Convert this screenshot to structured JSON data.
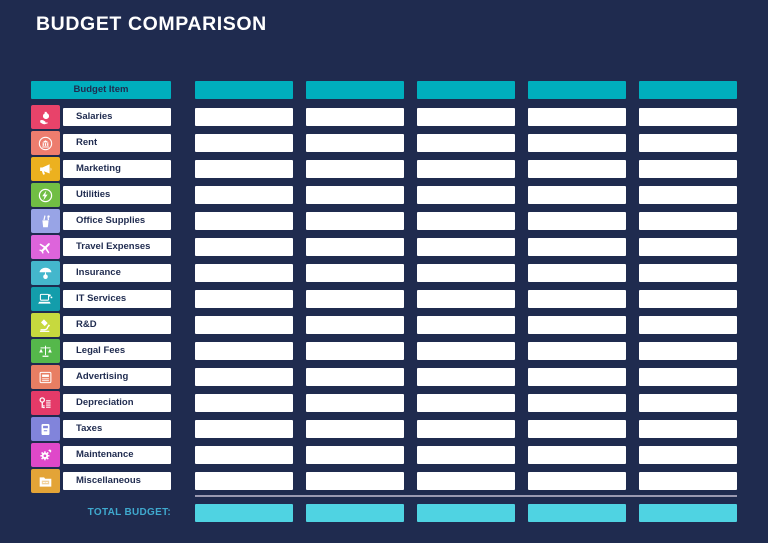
{
  "title": "BUDGET COMPARISON",
  "colors": {
    "background": "#1F2B4F",
    "header_teal": "#00AEBD",
    "cell_white": "#FFFFFF",
    "total_cyan": "#4FD3E2",
    "total_label_text": "#3FA9CE",
    "separator": "#9A99B1",
    "title_text": "#FFFFFF"
  },
  "table": {
    "item_header": "Budget Item",
    "column_headers": [
      "",
      "",
      "",
      "",
      ""
    ],
    "rows": [
      {
        "label": "Salaries",
        "icon": "money-hand-icon",
        "color": "#E8436A",
        "values": [
          "",
          "",
          "",
          "",
          ""
        ]
      },
      {
        "label": "Rent",
        "icon": "bank-building-icon",
        "color": "#ED7D6E",
        "values": [
          "",
          "",
          "",
          "",
          ""
        ]
      },
      {
        "label": "Marketing",
        "icon": "megaphone-icon",
        "color": "#ECB11F",
        "values": [
          "",
          "",
          "",
          "",
          ""
        ]
      },
      {
        "label": "Utilities",
        "icon": "lightning-icon",
        "color": "#71BE44",
        "values": [
          "",
          "",
          "",
          "",
          ""
        ]
      },
      {
        "label": "Office Supplies",
        "icon": "pencil-cup-icon",
        "color": "#98A4E6",
        "values": [
          "",
          "",
          "",
          "",
          ""
        ]
      },
      {
        "label": "Travel Expenses",
        "icon": "airplane-icon",
        "color": "#DD64DB",
        "values": [
          "",
          "",
          "",
          "",
          ""
        ]
      },
      {
        "label": "Insurance",
        "icon": "umbrella-icon",
        "color": "#44B7CC",
        "values": [
          "",
          "",
          "",
          "",
          ""
        ]
      },
      {
        "label": "IT Services",
        "icon": "laptop-icon",
        "color": "#139DAB",
        "values": [
          "",
          "",
          "",
          "",
          ""
        ]
      },
      {
        "label": "R&D",
        "icon": "microscope-icon",
        "color": "#C7D93E",
        "values": [
          "",
          "",
          "",
          "",
          ""
        ]
      },
      {
        "label": "Legal Fees",
        "icon": "scales-icon",
        "color": "#55B84B",
        "values": [
          "",
          "",
          "",
          "",
          ""
        ]
      },
      {
        "label": "Advertising",
        "icon": "newspaper-icon",
        "color": "#E87E63",
        "values": [
          "",
          "",
          "",
          "",
          ""
        ]
      },
      {
        "label": "Depreciation",
        "icon": "key-money-icon",
        "color": "#E43A68",
        "values": [
          "",
          "",
          "",
          "",
          ""
        ]
      },
      {
        "label": "Taxes",
        "icon": "calculator-icon",
        "color": "#8184DB",
        "values": [
          "",
          "",
          "",
          "",
          ""
        ]
      },
      {
        "label": "Maintenance",
        "icon": "gear-wrench-icon",
        "color": "#DF48C9",
        "values": [
          "",
          "",
          "",
          "",
          ""
        ]
      },
      {
        "label": "Miscellaneous",
        "icon": "folder-icon",
        "color": "#E3A437",
        "values": [
          "",
          "",
          "",
          "",
          ""
        ]
      }
    ]
  },
  "total": {
    "label": "TOTAL BUDGET:",
    "values": [
      "",
      "",
      "",
      "",
      ""
    ]
  }
}
